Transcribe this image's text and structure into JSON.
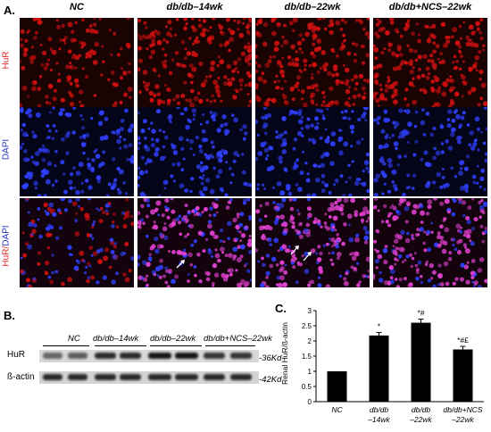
{
  "panelA": {
    "letter": "A.",
    "columns": [
      "NC",
      "db/db–14wk",
      "db/db–22wk",
      "db/db+NCS–22wk"
    ],
    "rows": [
      {
        "label": "HuR",
        "color": "#e02020"
      },
      {
        "label": "DAPI",
        "color": "#2030c0"
      },
      {
        "label": "HuR/",
        "label2": "DAPI",
        "color": "#e02020",
        "color2": "#2030c0"
      }
    ],
    "stain_colors": {
      "hur": "#d01010",
      "dapi": "#3040ff",
      "merge": "#e040d0",
      "background": "#0a0505"
    }
  },
  "panelB": {
    "letter": "B.",
    "group_labels": [
      "NC",
      "db/db–14wk",
      "db/db–22wk",
      "db/db+NCS–22wk"
    ],
    "bands": [
      {
        "name": "HuR",
        "size": "-36Kd"
      },
      {
        "name": "ß-actin",
        "size": "-42Kd"
      }
    ]
  },
  "panelC": {
    "letter": "C."
  },
  "chart_data": {
    "type": "bar",
    "ylabel": "Renal HuR/ß-actin",
    "ylim": [
      0,
      3.0
    ],
    "yticks": [
      "0",
      "0.5",
      "1",
      "1.5",
      "2",
      "2.5",
      "3"
    ],
    "categories": [
      "NC",
      "db/db\n–14wk",
      "db/db\n–22wk",
      "db/db+NCS\n–22wk"
    ],
    "category_lines": [
      [
        "NC"
      ],
      [
        "db/db",
        "–14wk"
      ],
      [
        "db/db",
        "–22wk"
      ],
      [
        "db/db+NCS",
        "–22wk"
      ]
    ],
    "values": [
      1.0,
      2.18,
      2.6,
      1.72
    ],
    "errors": [
      0.0,
      0.1,
      0.12,
      0.1
    ],
    "annotations": [
      "",
      "*",
      "*#",
      "*#£"
    ],
    "bar_color": "#000000"
  }
}
